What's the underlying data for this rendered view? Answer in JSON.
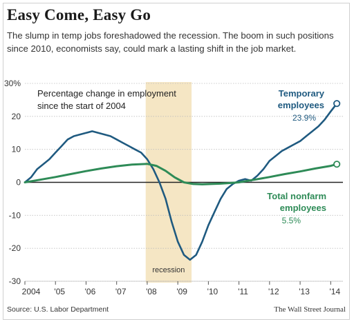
{
  "title": "Easy Come, Easy Go",
  "subtitle": "The slump in temp jobs foreshadowed the recession. The boom in such positions since 2010, economists say, could mark a lasting shift in the job market.",
  "source": "Source: U.S. Labor Department",
  "credit": "The Wall Street Journal",
  "colors": {
    "temporary": "#1f5a80",
    "nonfarm": "#2e8b57",
    "recession_band": "#f5e6c4",
    "grid": "#bdbdbd",
    "zero_line": "#222222",
    "text": "#333333"
  },
  "chart_data": {
    "type": "line",
    "annotation_title": "Percentage change in employment since the start of 2004",
    "xlim": [
      2004.0,
      2014.4
    ],
    "ylim": [
      -30,
      30
    ],
    "y_ticks": [
      30,
      20,
      10,
      0,
      -10,
      -20,
      -30
    ],
    "y_tick_labels": [
      "30%",
      "20",
      "10",
      "0",
      "-10",
      "-20",
      "-30"
    ],
    "x_ticks": [
      2004,
      2005,
      2006,
      2007,
      2008,
      2009,
      2010,
      2011,
      2012,
      2013,
      2014
    ],
    "x_tick_labels": [
      "2004",
      "'05",
      "'06",
      "'07",
      "'08",
      "'09",
      "'10",
      "'11",
      "'12",
      "'13",
      "'14"
    ],
    "grid": true,
    "recession": {
      "start": 2007.95,
      "end": 2009.45,
      "label": "recession"
    },
    "series": [
      {
        "name": "Temporary employees",
        "name_lines": [
          "Temporary",
          "employees"
        ],
        "end_label": "23.9%",
        "color": "#1f5a80",
        "x": [
          2004.0,
          2004.2,
          2004.4,
          2004.6,
          2004.8,
          2005.0,
          2005.2,
          2005.4,
          2005.6,
          2005.8,
          2006.0,
          2006.2,
          2006.4,
          2006.6,
          2006.8,
          2007.0,
          2007.2,
          2007.4,
          2007.6,
          2007.8,
          2008.0,
          2008.2,
          2008.4,
          2008.6,
          2008.8,
          2009.0,
          2009.2,
          2009.4,
          2009.6,
          2009.8,
          2010.0,
          2010.2,
          2010.4,
          2010.6,
          2010.8,
          2011.0,
          2011.2,
          2011.4,
          2011.6,
          2011.8,
          2012.0,
          2012.2,
          2012.4,
          2012.6,
          2012.8,
          2013.0,
          2013.2,
          2013.4,
          2013.6,
          2013.8,
          2014.0,
          2014.2
        ],
        "y": [
          0,
          1.5,
          4,
          5.5,
          7,
          9,
          11,
          13,
          14,
          14.5,
          15,
          15.5,
          15,
          14.5,
          14,
          13,
          12,
          11,
          10,
          9,
          7,
          4,
          0,
          -5,
          -12,
          -18,
          -22,
          -23.5,
          -22,
          -18,
          -13,
          -9,
          -5,
          -2,
          -0.5,
          0.5,
          1,
          0.5,
          2,
          4,
          6.5,
          8,
          9.5,
          10.5,
          11.5,
          12.5,
          14,
          15.5,
          17,
          19,
          21.5,
          23.9
        ]
      },
      {
        "name": "Total nonfarm employees",
        "name_lines": [
          "Total nonfarm",
          "employees"
        ],
        "end_label": "5.5%",
        "color": "#2e8b57",
        "x": [
          2004.0,
          2004.5,
          2005.0,
          2005.5,
          2006.0,
          2006.5,
          2007.0,
          2007.5,
          2008.0,
          2008.3,
          2008.6,
          2008.9,
          2009.2,
          2009.5,
          2009.8,
          2010.1,
          2010.4,
          2010.7,
          2011.0,
          2011.5,
          2012.0,
          2012.5,
          2013.0,
          2013.5,
          2014.0,
          2014.2
        ],
        "y": [
          0,
          0.8,
          1.6,
          2.5,
          3.4,
          4.2,
          4.9,
          5.4,
          5.6,
          5.0,
          3.5,
          1.5,
          0,
          -0.5,
          -0.6,
          -0.5,
          -0.4,
          -0.2,
          0,
          0.8,
          1.6,
          2.5,
          3.3,
          4.2,
          5.0,
          5.5
        ]
      }
    ]
  }
}
